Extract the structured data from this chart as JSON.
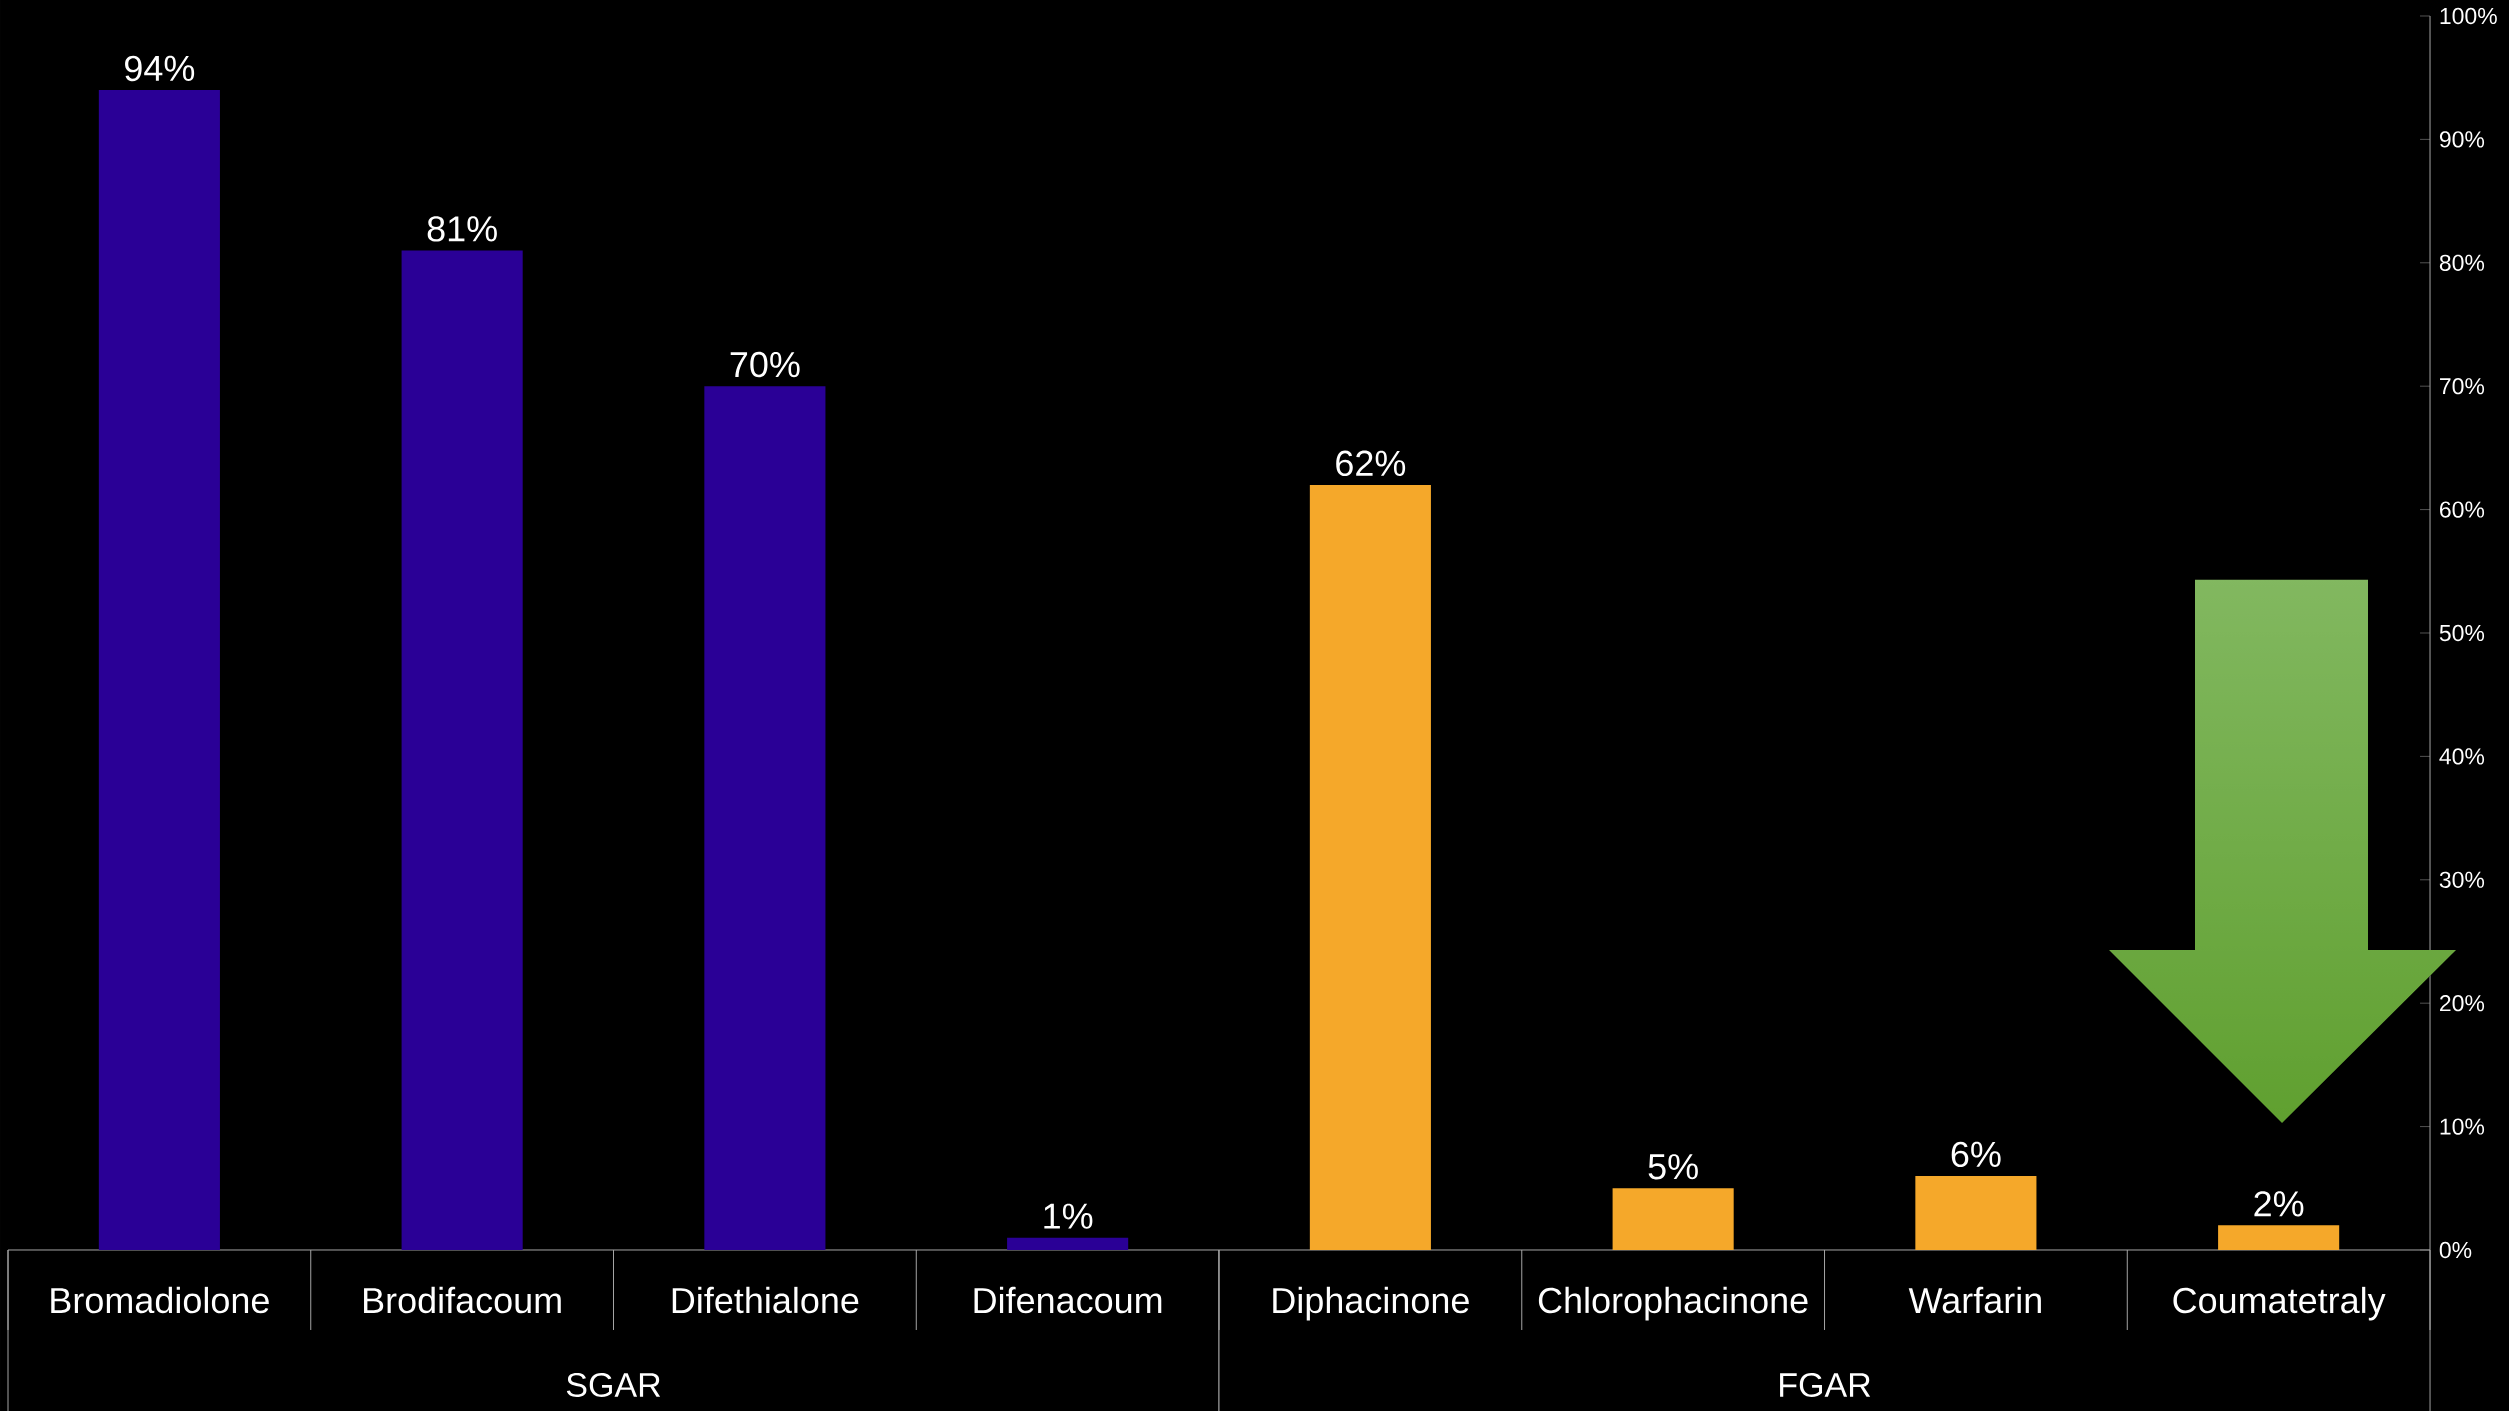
{
  "chart_data": {
    "type": "bar",
    "categories": [
      "Bromadiolone",
      "Brodifacoum",
      "Difethialone",
      "Difenacoum",
      "Diphacinone",
      "Chlorophacinone",
      "Warfarin",
      "Coumatetraly"
    ],
    "series": [
      {
        "color": "#2a0096",
        "values": [
          94,
          81,
          70,
          1,
          null,
          null,
          null,
          null
        ],
        "value_labels": [
          "94%",
          "81%",
          "70%",
          "1%",
          null,
          null,
          null,
          null
        ]
      },
      {
        "color": "#f5a82a",
        "values": [
          null,
          null,
          null,
          null,
          62,
          5,
          6,
          2
        ],
        "value_labels": [
          null,
          null,
          null,
          null,
          "62%",
          "5%",
          "6%",
          "2%"
        ]
      }
    ],
    "ylim": [
      0,
      100
    ],
    "yticks": [
      {
        "value": 0,
        "label": "0%"
      },
      {
        "value": 10,
        "label": "10%"
      },
      {
        "value": 20,
        "label": "20%"
      },
      {
        "value": 30,
        "label": "30%"
      },
      {
        "value": 40,
        "label": "40%"
      },
      {
        "value": 50,
        "label": "50%"
      },
      {
        "value": 60,
        "label": "60%"
      },
      {
        "value": 70,
        "label": "70%"
      },
      {
        "value": 80,
        "label": "80%"
      },
      {
        "value": 90,
        "label": "90%"
      },
      {
        "value": 100,
        "label": "100%"
      }
    ],
    "annotations": [
      "SGAR",
      "FGAR"
    ],
    "grid": false
  }
}
